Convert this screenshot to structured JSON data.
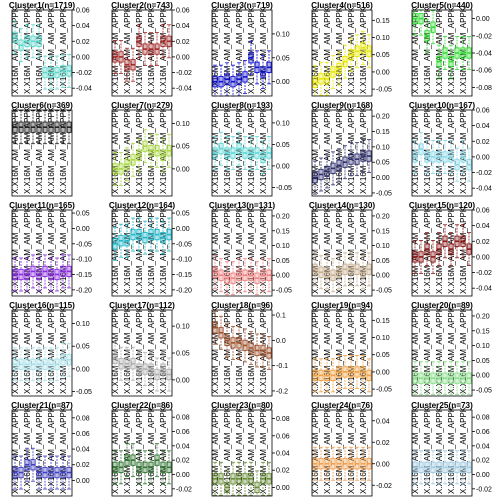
{
  "chart_data": {
    "type": "boxplot",
    "layout": {
      "rows": 5,
      "cols": 5
    },
    "x_tick_label": "X.X16M_AM_AM_APPK",
    "panels": [
      {
        "title": "Cluster1(n=1719)",
        "color": "#5ED8CC",
        "yticks": [
          "-0.04",
          "-0.02",
          "0.00",
          "0.02",
          "0.04",
          "0.06"
        ],
        "ylim": [
          -0.05,
          0.06
        ],
        "medians": [
          0.025,
          0.015,
          0.02,
          0.02,
          0.02,
          -0.02,
          -0.02,
          -0.02,
          -0.018,
          -0.018
        ]
      },
      {
        "title": "Cluster2(n=743)",
        "color": "#A52A2A",
        "yticks": [
          "-0.04",
          "-0.02",
          "0.00",
          "0.02",
          "0.04",
          "0.06"
        ],
        "ylim": [
          -0.05,
          0.06
        ],
        "medians": [
          0.0,
          0.0,
          -0.01,
          -0.01,
          0.02,
          0.01,
          0.01,
          0.01,
          0.02,
          0.02
        ]
      },
      {
        "title": "Cluster3(n=719)",
        "color": "#1010D0",
        "yticks": [
          "0.00",
          "0.05",
          "0.10"
        ],
        "ylim": [
          -0.03,
          0.15
        ],
        "medians": [
          0.0,
          0.0,
          0.005,
          0.0,
          0.005,
          0.01,
          0.05,
          0.03,
          0.02,
          0.03
        ]
      },
      {
        "title": "Cluster4(n=516)",
        "color": "#E8E800",
        "yticks": [
          "-0.05",
          "0.00",
          "0.05",
          "0.10",
          "0.15"
        ],
        "ylim": [
          -0.07,
          0.18
        ],
        "medians": [
          -0.03,
          -0.02,
          -0.02,
          0.0,
          0.01,
          0.03,
          0.05,
          0.06,
          0.07,
          0.06
        ]
      },
      {
        "title": "Cluster5(n=440)",
        "color": "#33DD33",
        "yticks": [
          "-0.08",
          "-0.06",
          "-0.04",
          "-0.02",
          "0.00"
        ],
        "ylim": [
          -0.09,
          0.01
        ],
        "medians": [
          0.0,
          0.0,
          -0.02,
          -0.01,
          -0.05,
          -0.04,
          -0.05,
          -0.04,
          -0.04,
          -0.04
        ]
      },
      {
        "title": "Cluster6(n=369)",
        "color": "#222222",
        "yticks": [],
        "ylim": [
          -0.1,
          0.1
        ],
        "medians": [
          0.06,
          0.06,
          0.06,
          0.06,
          0.06,
          0.06,
          0.06,
          0.06,
          0.06,
          0.06
        ]
      },
      {
        "title": "Cluster7(n=279)",
        "color": "#A8D840",
        "yticks": [
          "0.00",
          "0.05",
          "0.10"
        ],
        "ylim": [
          -0.06,
          0.13
        ],
        "medians": [
          0.0,
          0.0,
          0.01,
          0.02,
          0.03,
          0.05,
          0.04,
          0.04,
          0.03,
          0.04
        ]
      },
      {
        "title": "Cluster8(n=193)",
        "color": "#60D8D8",
        "yticks": [
          "-0.05",
          "0.00",
          "0.05",
          "0.10"
        ],
        "ylim": [
          -0.07,
          0.13
        ],
        "medians": [
          0.03,
          0.04,
          0.03,
          0.03,
          0.04,
          0.03,
          0.03,
          0.03,
          0.02,
          0.03
        ]
      },
      {
        "title": "Cluster9(n=168)",
        "color": "#303070",
        "yticks": [
          "-0.05",
          "0.00",
          "0.05",
          "0.10",
          "0.15",
          "0.20"
        ],
        "ylim": [
          -0.06,
          0.22
        ],
        "medians": [
          0.0,
          0.01,
          0.02,
          0.03,
          0.04,
          0.05,
          0.06,
          0.06,
          0.07,
          0.07
        ]
      },
      {
        "title": "Cluster10(n=167)",
        "color": "#88D8E8",
        "yticks": [
          "-0.04",
          "-0.02",
          "0.00",
          "0.02",
          "0.04",
          "0.06"
        ],
        "ylim": [
          -0.05,
          0.06
        ],
        "medians": [
          0.0,
          0.01,
          0.0,
          0.0,
          0.0,
          0.0,
          0.0,
          -0.01,
          0.0,
          -0.01
        ]
      },
      {
        "title": "Cluster11(n=165)",
        "color": "#8A2BE2",
        "yticks": [
          "-0.20",
          "-0.15",
          "-0.10",
          "-0.05",
          "0.00",
          "0.05"
        ],
        "ylim": [
          -0.22,
          0.06
        ],
        "medians": [
          -0.15,
          -0.15,
          -0.15,
          -0.14,
          -0.15,
          -0.14,
          -0.15,
          -0.15,
          -0.14,
          -0.14
        ]
      },
      {
        "title": "Cluster12(n=164)",
        "color": "#20B8C8",
        "yticks": [
          "-0.20",
          "-0.15",
          "-0.10",
          "-0.05",
          "0.00",
          "0.05"
        ],
        "ylim": [
          -0.22,
          0.06
        ],
        "medians": [
          -0.05,
          -0.04,
          -0.04,
          -0.02,
          -0.02,
          -0.03,
          -0.02,
          -0.02,
          -0.03,
          -0.02
        ]
      },
      {
        "title": "Cluster13(n=131)",
        "color": "#F08080",
        "yticks": [
          "-0.05",
          "0.00",
          "0.05",
          "0.10",
          "0.15",
          "0.20"
        ],
        "ylim": [
          -0.07,
          0.22
        ],
        "medians": [
          0.01,
          0.0,
          -0.01,
          -0.01,
          0.0,
          0.0,
          0.0,
          -0.01,
          0.0,
          0.0
        ]
      },
      {
        "title": "Cluster14(n=130)",
        "color": "#C8B090",
        "yticks": [
          "-0.05",
          "0.00",
          "0.05",
          "0.10",
          "0.15",
          "0.20"
        ],
        "ylim": [
          -0.07,
          0.22
        ],
        "medians": [
          0.02,
          0.01,
          0.01,
          0.0,
          0.01,
          0.02,
          0.02,
          0.02,
          0.01,
          0.02
        ]
      },
      {
        "title": "Cluster15(n=120)",
        "color": "#8B1A1A",
        "yticks": [
          "-0.04",
          "-0.02",
          "0.00",
          "0.02",
          "0.04",
          "0.06"
        ],
        "ylim": [
          -0.05,
          0.06
        ],
        "medians": [
          0.0,
          0.0,
          0.01,
          0.0,
          0.01,
          0.02,
          0.01,
          0.02,
          0.02,
          0.01
        ]
      },
      {
        "title": "Cluster16(n=115)",
        "color": "#A8E0E8",
        "yticks": [
          "-0.05",
          "0.00",
          "0.05",
          "0.10"
        ],
        "ylim": [
          -0.06,
          0.13
        ],
        "medians": [
          0.01,
          0.01,
          0.01,
          0.01,
          0.01,
          0.01,
          0.01,
          0.01,
          0.02,
          0.02
        ]
      },
      {
        "title": "Cluster17(n=112)",
        "color": "#B0B0B0",
        "yticks": [
          "0.00",
          "0.05",
          "0.10"
        ],
        "ylim": [
          -0.03,
          0.13
        ],
        "medians": [
          0.04,
          0.03,
          0.03,
          0.03,
          0.02,
          0.02,
          0.02,
          0.01,
          0.02,
          0.01
        ]
      },
      {
        "title": "Cluster18(n=96)",
        "color": "#A0522D",
        "yticks": [
          "-0.2",
          "-0.1",
          "0.0",
          "0.1"
        ],
        "ylim": [
          -0.22,
          0.12
        ],
        "medians": [
          0.05,
          0.03,
          0.0,
          -0.01,
          -0.01,
          -0.02,
          -0.03,
          -0.04,
          -0.04,
          -0.05
        ]
      },
      {
        "title": "Cluster19(n=94)",
        "color": "#F0A040",
        "yticks": [
          "-0.05",
          "0.00",
          "0.05",
          "0.10",
          "0.15"
        ],
        "ylim": [
          -0.07,
          0.18
        ],
        "medians": [
          -0.01,
          -0.01,
          -0.01,
          -0.01,
          0.0,
          0.0,
          0.0,
          0.0,
          0.0,
          -0.01
        ]
      },
      {
        "title": "Cluster20(n=89)",
        "color": "#88DD88",
        "yticks": [
          "-0.05",
          "0.00",
          "0.05",
          "0.10",
          "0.15",
          "0.20"
        ],
        "ylim": [
          -0.07,
          0.22
        ],
        "medians": [
          -0.01,
          -0.01,
          -0.01,
          -0.01,
          -0.01,
          -0.01,
          -0.01,
          -0.01,
          -0.01,
          -0.01
        ]
      },
      {
        "title": "Cluster21(n=87)",
        "color": "#4040C0",
        "yticks": [
          "0.00",
          "0.02",
          "0.04",
          "0.06",
          "0.08"
        ],
        "ylim": [
          -0.02,
          0.09
        ],
        "medians": [
          0.01,
          0.01,
          0.02,
          0.02,
          0.01,
          0.01,
          0.01,
          0.01,
          0.01,
          0.01
        ]
      },
      {
        "title": "Cluster22(n=86)",
        "color": "#337733",
        "yticks": [
          "-0.02",
          "0.00",
          "0.02",
          "0.04",
          "0.06",
          "0.08"
        ],
        "ylim": [
          -0.03,
          0.09
        ],
        "medians": [
          0.01,
          0.01,
          0.02,
          0.02,
          0.01,
          0.01,
          0.01,
          0.02,
          0.01,
          0.01
        ]
      },
      {
        "title": "Cluster23(n=80)",
        "color": "#6B8E3A",
        "yticks": [
          "0.00",
          "0.02",
          "0.04",
          "0.06",
          "0.08"
        ],
        "ylim": [
          -0.01,
          0.09
        ],
        "medians": [
          0.01,
          0.01,
          0.0,
          0.01,
          0.01,
          0.01,
          0.01,
          0.0,
          0.01,
          0.01
        ]
      },
      {
        "title": "Cluster24(n=76)",
        "color": "#F0A050",
        "yticks": [
          "-0.02",
          "0.00",
          "0.02",
          "0.04"
        ],
        "ylim": [
          -0.03,
          0.05
        ],
        "medians": [
          0.0,
          0.0,
          0.0,
          0.0,
          0.0,
          0.0,
          0.0,
          0.0,
          0.0,
          0.0
        ]
      },
      {
        "title": "Cluster25(n=73)",
        "color": "#9EC8E0",
        "yticks": [
          "-0.02",
          "0.00",
          "0.02",
          "0.04",
          "0.06",
          "0.08"
        ],
        "ylim": [
          -0.03,
          0.09
        ],
        "medians": [
          0.01,
          0.01,
          0.01,
          0.01,
          0.01,
          0.01,
          0.01,
          0.01,
          0.01,
          0.01
        ]
      }
    ]
  }
}
